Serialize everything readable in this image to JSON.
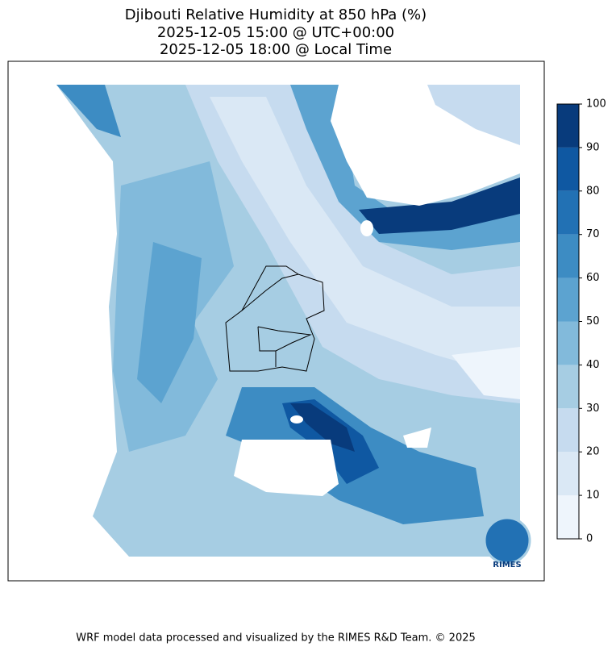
{
  "title": [
    "Djibouti Relative Humidity at 850 hPa (%)",
    "2025-12-05 15:00 @ UTC+00:00",
    "2025-12-05 18:00 @ Local Time"
  ],
  "colorbar": {
    "ticks": [
      0,
      10,
      20,
      30,
      40,
      50,
      60,
      70,
      80,
      90,
      100
    ],
    "colors": [
      "#eef5fc",
      "#dae8f5",
      "#c6dbef",
      "#a6cde3",
      "#82badb",
      "#5ca3d0",
      "#3d8cc3",
      "#2271b4",
      "#0f58a2",
      "#083b7c"
    ]
  },
  "logo": "RIMES",
  "footer": "WRF model data processed and visualized by the RIMES R&D Team. © 2025"
}
